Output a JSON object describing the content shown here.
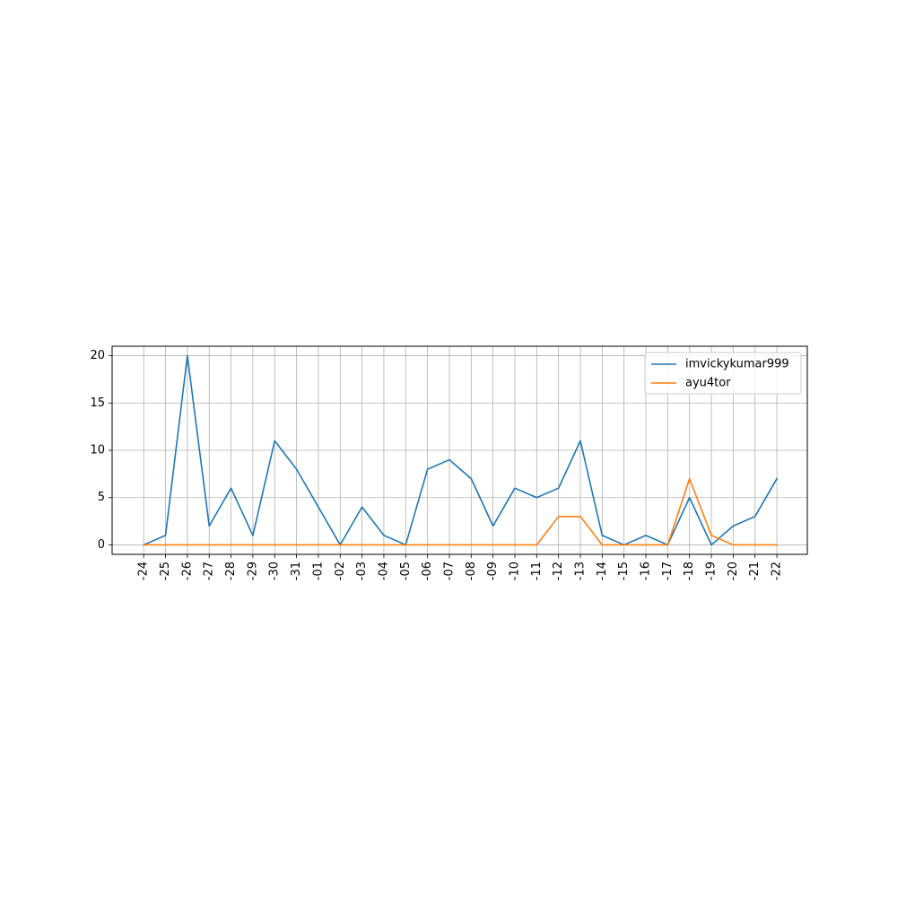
{
  "chart_data": {
    "type": "line",
    "x_labels": [
      "-24",
      "-25",
      "-26",
      "-27",
      "-28",
      "-29",
      "-30",
      "-31",
      "-01",
      "-02",
      "-03",
      "-04",
      "-05",
      "-06",
      "-07",
      "-08",
      "-09",
      "-10",
      "-11",
      "-12",
      "-13",
      "-14",
      "-15",
      "-16",
      "-17",
      "-18",
      "-19",
      "-20",
      "-21",
      "-22"
    ],
    "y_ticks": [
      0,
      5,
      10,
      15,
      20
    ],
    "ylim": [
      -1,
      21
    ],
    "grid": true,
    "legend_position": "upper-right",
    "series": [
      {
        "name": "imvickykumar999",
        "color": "#1f77b4",
        "values": [
          0,
          1,
          20,
          2,
          6,
          1,
          11,
          8,
          4,
          0,
          4,
          1,
          0,
          8,
          9,
          7,
          2,
          6,
          5,
          6,
          11,
          1,
          0,
          1,
          0,
          5,
          0,
          2,
          3,
          7
        ]
      },
      {
        "name": "ayu4tor",
        "color": "#ff7f0e",
        "values": [
          0,
          0,
          0,
          0,
          0,
          0,
          0,
          0,
          0,
          0,
          0,
          0,
          0,
          0,
          0,
          0,
          0,
          0,
          0,
          3,
          3,
          0,
          0,
          0,
          0,
          7,
          1,
          0,
          0,
          0
        ]
      }
    ]
  }
}
